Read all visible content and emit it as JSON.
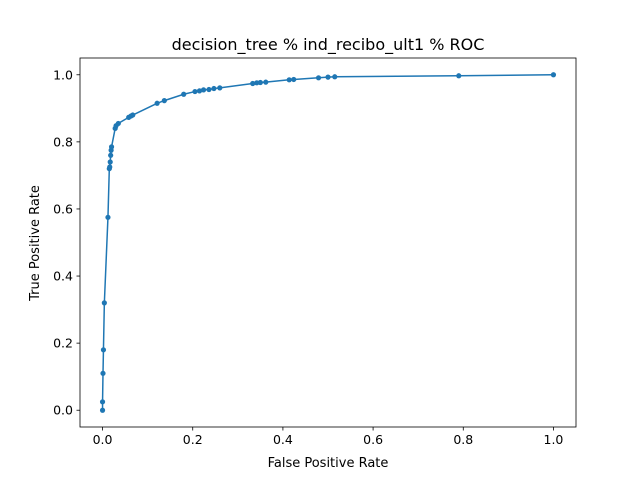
{
  "chart_data": {
    "type": "line",
    "title": "decision_tree % ind_recibo_ult1 % ROC",
    "xlabel": "False Positive Rate",
    "ylabel": "True Positive Rate",
    "xlim": [
      -0.05,
      1.05
    ],
    "ylim": [
      -0.05,
      1.05
    ],
    "xticks": [
      0.0,
      0.2,
      0.4,
      0.6,
      0.8,
      1.0
    ],
    "yticks": [
      0.0,
      0.2,
      0.4,
      0.6,
      0.8,
      1.0
    ],
    "xtick_labels": [
      "0.0",
      "0.2",
      "0.4",
      "0.6",
      "0.8",
      "1.0"
    ],
    "ytick_labels": [
      "0.0",
      "0.2",
      "0.4",
      "0.6",
      "0.8",
      "1.0"
    ],
    "grid": false,
    "color": "#1f77b4",
    "marker": "circle",
    "series": [
      {
        "x": [
          0.0,
          0.0,
          0.001,
          0.002,
          0.004,
          0.012,
          0.015,
          0.016,
          0.017,
          0.018,
          0.019,
          0.02,
          0.028,
          0.03,
          0.035,
          0.058,
          0.063,
          0.067,
          0.121,
          0.137,
          0.18,
          0.205,
          0.215,
          0.224,
          0.236,
          0.247,
          0.26,
          0.333,
          0.342,
          0.35,
          0.362,
          0.414,
          0.424,
          0.479,
          0.5,
          0.515,
          0.79,
          1.0
        ],
        "y": [
          0.0,
          0.025,
          0.11,
          0.18,
          0.32,
          0.575,
          0.72,
          0.725,
          0.74,
          0.76,
          0.775,
          0.785,
          0.84,
          0.848,
          0.855,
          0.873,
          0.877,
          0.88,
          0.915,
          0.923,
          0.942,
          0.95,
          0.952,
          0.955,
          0.956,
          0.959,
          0.961,
          0.974,
          0.976,
          0.977,
          0.978,
          0.985,
          0.986,
          0.991,
          0.993,
          0.994,
          0.997,
          1.0
        ]
      }
    ]
  }
}
